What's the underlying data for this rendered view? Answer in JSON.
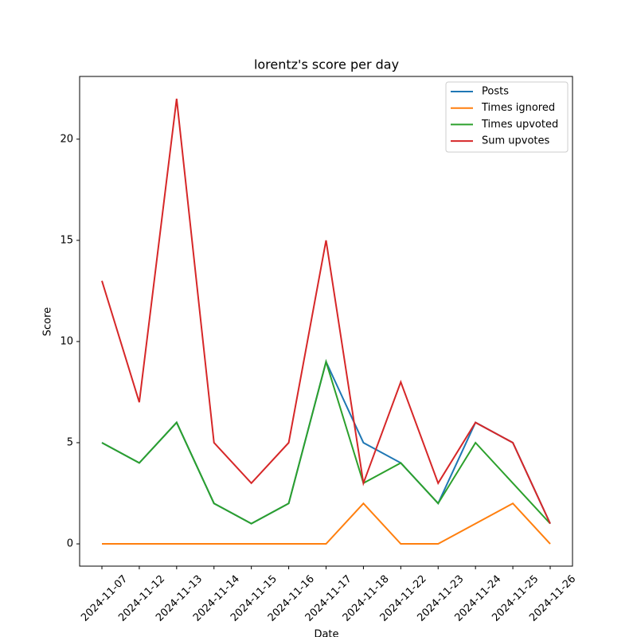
{
  "chart_data": {
    "type": "line",
    "title": "lorentz's score per day",
    "xlabel": "Date",
    "ylabel": "Score",
    "categories": [
      "2024-11-07",
      "2024-11-12",
      "2024-11-13",
      "2024-11-14",
      "2024-11-15",
      "2024-11-16",
      "2024-11-17",
      "2024-11-18",
      "2024-11-22",
      "2024-11-23",
      "2024-11-24",
      "2024-11-25",
      "2024-11-26"
    ],
    "series": [
      {
        "name": "Posts",
        "color": "#1f77b4",
        "values": [
          5,
          4,
          6,
          2,
          1,
          2,
          9,
          5,
          4,
          2,
          6,
          5,
          1
        ]
      },
      {
        "name": "Times ignored",
        "color": "#ff7f0e",
        "values": [
          0,
          0,
          0,
          0,
          0,
          0,
          0,
          2,
          0,
          0,
          1,
          2,
          0
        ]
      },
      {
        "name": "Times upvoted",
        "color": "#2ca02c",
        "values": [
          5,
          4,
          6,
          2,
          1,
          2,
          9,
          3,
          4,
          2,
          5,
          3,
          1
        ]
      },
      {
        "name": "Sum upvotes",
        "color": "#d62728",
        "values": [
          13,
          7,
          22,
          5,
          3,
          5,
          15,
          3,
          8,
          3,
          6,
          5,
          1
        ]
      }
    ],
    "ylim": [
      -1.1,
      23.1
    ],
    "yticks": [
      0,
      5,
      10,
      15,
      20
    ],
    "grid": false,
    "legend": "upper right"
  }
}
